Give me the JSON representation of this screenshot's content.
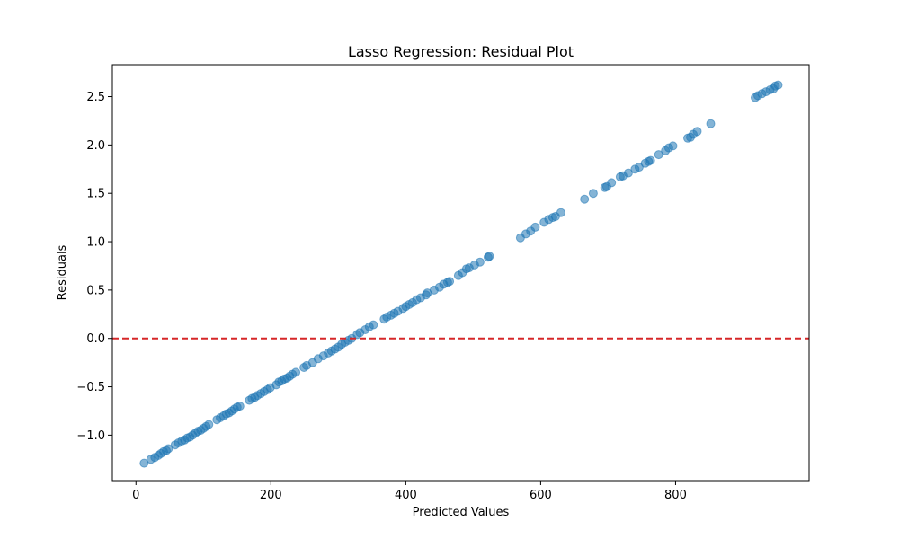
{
  "chart_data": {
    "type": "scatter",
    "title": "Lasso Regression: Residual Plot",
    "xlabel": "Predicted Values",
    "ylabel": "Residuals",
    "xlim": [
      -35,
      998
    ],
    "ylim": [
      -1.47,
      2.83
    ],
    "x_ticks": [
      0,
      200,
      400,
      600,
      800
    ],
    "x_tick_labels": [
      "0",
      "200",
      "400",
      "600",
      "800"
    ],
    "y_ticks": [
      -1.0,
      -0.5,
      0.0,
      0.5,
      1.0,
      1.5,
      2.0,
      2.5
    ],
    "y_tick_labels": [
      "−1.0",
      "−0.5",
      "0.0",
      "0.5",
      "1.0",
      "1.5",
      "2.0",
      "2.5"
    ],
    "grid": false,
    "reference_line": {
      "y": 0.0,
      "color": "#d62728",
      "style": "dashed"
    },
    "marker_color": "#1f77b4",
    "marker_alpha": 0.55,
    "points": [
      [
        12,
        -1.29
      ],
      [
        22,
        -1.25
      ],
      [
        28,
        -1.23
      ],
      [
        33,
        -1.21
      ],
      [
        37,
        -1.19
      ],
      [
        41,
        -1.17
      ],
      [
        45,
        -1.16
      ],
      [
        48,
        -1.14
      ],
      [
        58,
        -1.1
      ],
      [
        63,
        -1.08
      ],
      [
        68,
        -1.06
      ],
      [
        72,
        -1.05
      ],
      [
        76,
        -1.03
      ],
      [
        80,
        -1.02
      ],
      [
        84,
        -1.0
      ],
      [
        88,
        -0.98
      ],
      [
        92,
        -0.96
      ],
      [
        96,
        -0.95
      ],
      [
        100,
        -0.93
      ],
      [
        104,
        -0.91
      ],
      [
        108,
        -0.89
      ],
      [
        120,
        -0.84
      ],
      [
        125,
        -0.82
      ],
      [
        130,
        -0.8
      ],
      [
        134,
        -0.78
      ],
      [
        138,
        -0.77
      ],
      [
        142,
        -0.75
      ],
      [
        146,
        -0.73
      ],
      [
        150,
        -0.71
      ],
      [
        154,
        -0.7
      ],
      [
        168,
        -0.64
      ],
      [
        172,
        -0.62
      ],
      [
        176,
        -0.61
      ],
      [
        180,
        -0.59
      ],
      [
        185,
        -0.57
      ],
      [
        190,
        -0.55
      ],
      [
        195,
        -0.53
      ],
      [
        199,
        -0.51
      ],
      [
        208,
        -0.48
      ],
      [
        212,
        -0.45
      ],
      [
        216,
        -0.44
      ],
      [
        220,
        -0.42
      ],
      [
        224,
        -0.41
      ],
      [
        228,
        -0.39
      ],
      [
        232,
        -0.37
      ],
      [
        237,
        -0.35
      ],
      [
        249,
        -0.3
      ],
      [
        253,
        -0.28
      ],
      [
        262,
        -0.25
      ],
      [
        270,
        -0.21
      ],
      [
        278,
        -0.18
      ],
      [
        285,
        -0.15
      ],
      [
        290,
        -0.13
      ],
      [
        295,
        -0.11
      ],
      [
        300,
        -0.09
      ],
      [
        305,
        -0.06
      ],
      [
        310,
        -0.04
      ],
      [
        315,
        -0.02
      ],
      [
        320,
        0.0
      ],
      [
        328,
        0.04
      ],
      [
        332,
        0.06
      ],
      [
        340,
        0.09
      ],
      [
        346,
        0.12
      ],
      [
        352,
        0.14
      ],
      [
        368,
        0.2
      ],
      [
        372,
        0.22
      ],
      [
        378,
        0.24
      ],
      [
        383,
        0.26
      ],
      [
        388,
        0.28
      ],
      [
        396,
        0.31
      ],
      [
        400,
        0.33
      ],
      [
        405,
        0.35
      ],
      [
        410,
        0.37
      ],
      [
        416,
        0.4
      ],
      [
        422,
        0.42
      ],
      [
        430,
        0.45
      ],
      [
        432,
        0.47
      ],
      [
        442,
        0.5
      ],
      [
        450,
        0.53
      ],
      [
        456,
        0.56
      ],
      [
        462,
        0.58
      ],
      [
        465,
        0.59
      ],
      [
        478,
        0.65
      ],
      [
        484,
        0.68
      ],
      [
        490,
        0.72
      ],
      [
        494,
        0.73
      ],
      [
        502,
        0.76
      ],
      [
        510,
        0.79
      ],
      [
        522,
        0.84
      ],
      [
        524,
        0.85
      ],
      [
        570,
        1.04
      ],
      [
        578,
        1.08
      ],
      [
        585,
        1.11
      ],
      [
        592,
        1.15
      ],
      [
        605,
        1.2
      ],
      [
        612,
        1.23
      ],
      [
        618,
        1.25
      ],
      [
        622,
        1.26
      ],
      [
        630,
        1.3
      ],
      [
        665,
        1.44
      ],
      [
        678,
        1.5
      ],
      [
        695,
        1.56
      ],
      [
        698,
        1.57
      ],
      [
        705,
        1.61
      ],
      [
        718,
        1.67
      ],
      [
        722,
        1.68
      ],
      [
        730,
        1.71
      ],
      [
        740,
        1.75
      ],
      [
        746,
        1.77
      ],
      [
        755,
        1.81
      ],
      [
        760,
        1.83
      ],
      [
        763,
        1.84
      ],
      [
        775,
        1.9
      ],
      [
        785,
        1.94
      ],
      [
        790,
        1.97
      ],
      [
        796,
        1.99
      ],
      [
        818,
        2.07
      ],
      [
        822,
        2.08
      ],
      [
        826,
        2.11
      ],
      [
        832,
        2.14
      ],
      [
        852,
        2.22
      ],
      [
        918,
        2.49
      ],
      [
        922,
        2.51
      ],
      [
        928,
        2.53
      ],
      [
        934,
        2.55
      ],
      [
        940,
        2.57
      ],
      [
        945,
        2.58
      ],
      [
        948,
        2.61
      ],
      [
        952,
        2.62
      ]
    ]
  }
}
